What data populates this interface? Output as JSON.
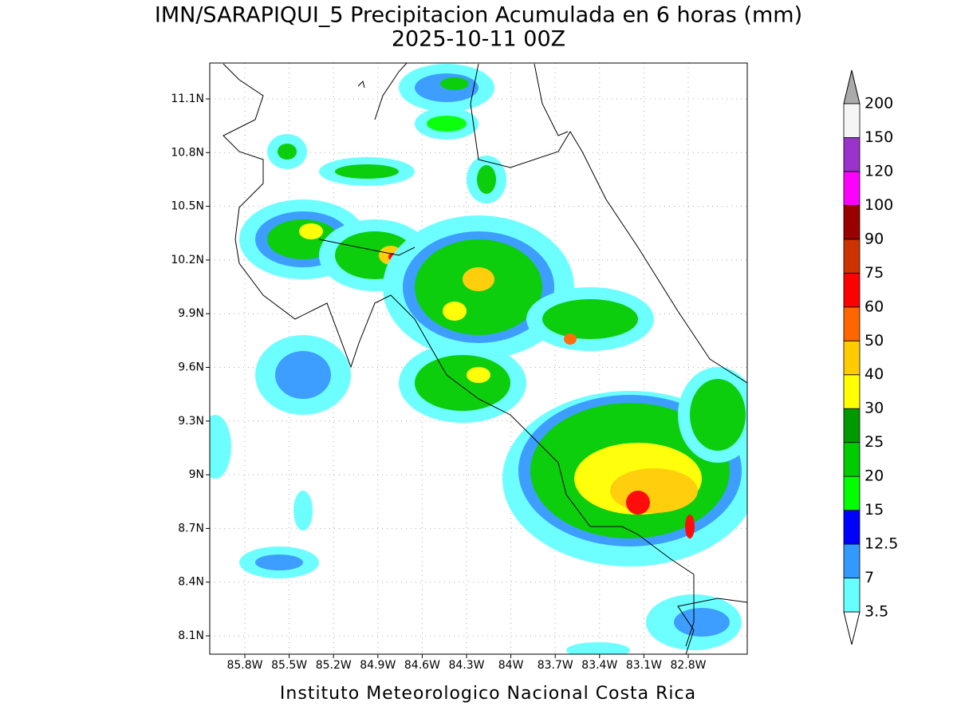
{
  "header": {
    "title": "IMN/SARAPIQUI_5 Precipitacion Acumulada en 6 horas (mm)",
    "subtitle": "2025-10-11 00Z"
  },
  "map": {
    "lat_labels": [
      "11.1N",
      "10.8N",
      "10.5N",
      "10.2N",
      "9.9N",
      "9.6N",
      "9.3N",
      "9N",
      "8.7N",
      "8.4N",
      "8.1N"
    ],
    "lon_labels": [
      "85.8W",
      "85.5W",
      "85.2W",
      "84.9W",
      "84.6W",
      "84.3W",
      "84W",
      "83.7W",
      "83.4W",
      "83.1W",
      "82.8W"
    ],
    "grid": true
  },
  "colorbar": {
    "levels": [
      3.5,
      7,
      12.5,
      15,
      20,
      25,
      30,
      40,
      50,
      60,
      75,
      90,
      100,
      120,
      150,
      200
    ],
    "colors": [
      "#66ffff",
      "#3399ff",
      "#0000ff",
      "#00ff00",
      "#00cc00",
      "#009900",
      "#ffff00",
      "#ffcc00",
      "#ff6600",
      "#ff0000",
      "#cc3300",
      "#990000",
      "#ff00ff",
      "#9933cc",
      "#f5f5f5"
    ],
    "under_color": "#ffffff",
    "over_color": "#aaaaaa"
  },
  "footer": "Instituto Meteorologico Nacional Costa Rica"
}
